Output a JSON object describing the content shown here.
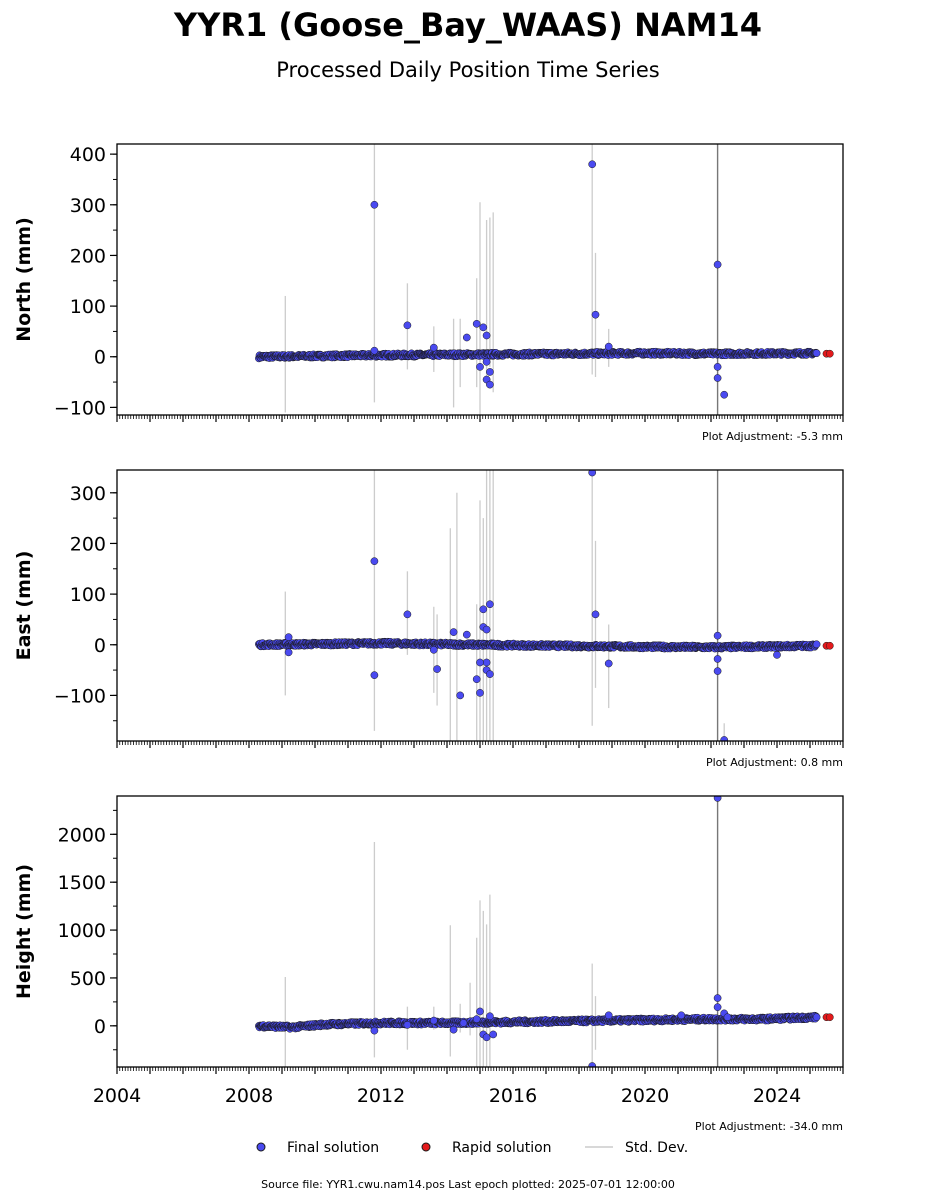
{
  "header": {
    "title": "YYR1 (Goose_Bay_WAAS) NAM14",
    "subtitle": "Processed Daily Position Time Series"
  },
  "footer": {
    "source": "Source file: YYR1.cwu.nam14.pos  Last epoch plotted: 2025-07-01 12:00:00"
  },
  "legend": {
    "items": [
      {
        "label": "Final solution",
        "color": "#4a4af0",
        "kind": "dot"
      },
      {
        "label": "Rapid solution",
        "color": "#e31a1c",
        "kind": "dot"
      },
      {
        "label": "Std. Dev.",
        "color": "#cccccc",
        "kind": "line"
      }
    ]
  },
  "colors": {
    "final": "#4a4af0",
    "rapid": "#e31a1c",
    "stddev": "#cccccc",
    "stddev_dark": "#777777",
    "edge": "#1a1a1a"
  },
  "chart_data": [
    {
      "type": "scatter",
      "ylabel": "North (mm)",
      "adjustment": "Plot Adjustment: -5.3 mm",
      "xlim": [
        2004,
        2026
      ],
      "ylim": [
        -115,
        420
      ],
      "yticks": [
        -100,
        0,
        100,
        200,
        300,
        400
      ],
      "ytick_labels": [
        "−100",
        "0",
        "100",
        "200",
        "300",
        "400"
      ],
      "baseline": [
        [
          2008.3,
          0
        ],
        [
          2012,
          3
        ],
        [
          2016,
          5
        ],
        [
          2020,
          7
        ],
        [
          2022.1,
          6
        ],
        [
          2025.2,
          7
        ]
      ],
      "outliers": [
        [
          2011.8,
          300
        ],
        [
          2011.8,
          12
        ],
        [
          2012.8,
          62
        ],
        [
          2013.6,
          18
        ],
        [
          2014.6,
          38
        ],
        [
          2014.9,
          65
        ],
        [
          2015.1,
          58
        ],
        [
          2015.2,
          42
        ],
        [
          2015.0,
          -20
        ],
        [
          2015.2,
          -45
        ],
        [
          2015.3,
          -55
        ],
        [
          2015.3,
          -30
        ],
        [
          2015.2,
          -10
        ],
        [
          2018.4,
          380
        ],
        [
          2018.5,
          83
        ],
        [
          2018.9,
          20
        ],
        [
          2022.2,
          182
        ],
        [
          2022.2,
          -20
        ],
        [
          2022.2,
          -42
        ],
        [
          2022.4,
          -75
        ]
      ],
      "errorbars": [
        [
          2009.1,
          -110,
          120
        ],
        [
          2011.8,
          -90,
          420
        ],
        [
          2012.8,
          -25,
          145
        ],
        [
          2013.6,
          -30,
          60
        ],
        [
          2014.2,
          -100,
          75
        ],
        [
          2014.4,
          -60,
          75
        ],
        [
          2014.9,
          -60,
          155
        ],
        [
          2015.0,
          -115,
          305
        ],
        [
          2015.2,
          -40,
          270
        ],
        [
          2015.3,
          -20,
          275
        ],
        [
          2015.4,
          -70,
          285
        ],
        [
          2018.4,
          -35,
          420
        ],
        [
          2018.5,
          -40,
          205
        ],
        [
          2018.9,
          -20,
          55
        ],
        [
          2022.2,
          -115,
          420
        ]
      ],
      "rapid": [
        [
          2025.5,
          6
        ],
        [
          2025.6,
          6
        ]
      ]
    },
    {
      "type": "scatter",
      "ylabel": "East (mm)",
      "adjustment": "Plot Adjustment: 0.8 mm",
      "xlim": [
        2004,
        2026
      ],
      "ylim": [
        -190,
        345
      ],
      "yticks": [
        -100,
        0,
        100,
        200,
        300
      ],
      "ytick_labels": [
        "−100",
        "0",
        "100",
        "200",
        "300"
      ],
      "baseline": [
        [
          2008.3,
          0
        ],
        [
          2012,
          3
        ],
        [
          2016,
          -1
        ],
        [
          2020,
          -4
        ],
        [
          2022.1,
          -5
        ],
        [
          2025.2,
          -2
        ]
      ],
      "outliers": [
        [
          2009.2,
          15
        ],
        [
          2009.2,
          -15
        ],
        [
          2011.8,
          165
        ],
        [
          2011.8,
          -60
        ],
        [
          2012.8,
          60
        ],
        [
          2013.6,
          -10
        ],
        [
          2013.7,
          -48
        ],
        [
          2014.2,
          25
        ],
        [
          2014.4,
          -100
        ],
        [
          2014.6,
          20
        ],
        [
          2014.9,
          -68
        ],
        [
          2015.0,
          -95
        ],
        [
          2015.1,
          70
        ],
        [
          2015.1,
          35
        ],
        [
          2015.2,
          30
        ],
        [
          2015.3,
          80
        ],
        [
          2015.2,
          -50
        ],
        [
          2015.3,
          -58
        ],
        [
          2015.2,
          -35
        ],
        [
          2015.0,
          -35
        ],
        [
          2018.4,
          340
        ],
        [
          2018.5,
          60
        ],
        [
          2018.9,
          -37
        ],
        [
          2022.2,
          18
        ],
        [
          2022.2,
          -28
        ],
        [
          2022.2,
          -52
        ],
        [
          2022.4,
          -188
        ],
        [
          2024.0,
          -20
        ]
      ],
      "errorbars": [
        [
          2009.1,
          -100,
          105
        ],
        [
          2011.8,
          -170,
          345
        ],
        [
          2012.8,
          -20,
          145
        ],
        [
          2013.6,
          -95,
          75
        ],
        [
          2013.7,
          -120,
          60
        ],
        [
          2014.1,
          -190,
          230
        ],
        [
          2014.3,
          -190,
          300
        ],
        [
          2014.9,
          -190,
          80
        ],
        [
          2015.0,
          -190,
          285
        ],
        [
          2015.1,
          -190,
          250
        ],
        [
          2015.2,
          -190,
          345
        ],
        [
          2015.3,
          -190,
          345
        ],
        [
          2015.4,
          -190,
          345
        ],
        [
          2018.4,
          -160,
          345
        ],
        [
          2018.5,
          -85,
          205
        ],
        [
          2018.9,
          -125,
          40
        ],
        [
          2022.2,
          -190,
          345
        ],
        [
          2022.4,
          -190,
          -155
        ]
      ],
      "rapid": [
        [
          2025.5,
          -2
        ],
        [
          2025.6,
          -2
        ]
      ]
    },
    {
      "type": "scatter",
      "ylabel": "Height (mm)",
      "adjustment": "Plot Adjustment: -34.0 mm",
      "xlim": [
        2004,
        2026
      ],
      "ylim": [
        -430,
        2400
      ],
      "yticks": [
        0,
        500,
        1000,
        1500,
        2000
      ],
      "ytick_labels": [
        "0",
        "500",
        "1000",
        "1500",
        "2000"
      ],
      "xticks": [
        2004,
        2008,
        2012,
        2016,
        2020,
        2024
      ],
      "baseline": [
        [
          2008.3,
          0
        ],
        [
          2009.3,
          -15
        ],
        [
          2010.3,
          15
        ],
        [
          2012,
          30
        ],
        [
          2014,
          30
        ],
        [
          2016,
          40
        ],
        [
          2018,
          50
        ],
        [
          2020,
          60
        ],
        [
          2022,
          70
        ],
        [
          2022.5,
          70
        ],
        [
          2023.5,
          70
        ],
        [
          2025.2,
          90
        ]
      ],
      "outliers": [
        [
          2011.8,
          -50
        ],
        [
          2012.8,
          10
        ],
        [
          2013.6,
          55
        ],
        [
          2014.2,
          -40
        ],
        [
          2014.5,
          30
        ],
        [
          2014.9,
          70
        ],
        [
          2015.0,
          150
        ],
        [
          2015.1,
          -90
        ],
        [
          2015.2,
          -120
        ],
        [
          2015.3,
          100
        ],
        [
          2015.4,
          -90
        ],
        [
          2018.4,
          -420
        ],
        [
          2018.9,
          110
        ],
        [
          2021.1,
          110
        ],
        [
          2022.2,
          2380
        ],
        [
          2022.2,
          290
        ],
        [
          2022.2,
          195
        ],
        [
          2022.4,
          130
        ],
        [
          2022.5,
          90
        ]
      ],
      "errorbars": [
        [
          2009.1,
          -430,
          510
        ],
        [
          2011.8,
          -330,
          1920
        ],
        [
          2012.8,
          -250,
          200
        ],
        [
          2013.6,
          -40,
          200
        ],
        [
          2014.1,
          -320,
          1050
        ],
        [
          2014.4,
          -70,
          230
        ],
        [
          2014.7,
          -100,
          450
        ],
        [
          2014.9,
          -430,
          920
        ],
        [
          2015.0,
          -430,
          1310
        ],
        [
          2015.1,
          -430,
          1200
        ],
        [
          2015.2,
          -430,
          1060
        ],
        [
          2015.3,
          -430,
          1370
        ],
        [
          2018.4,
          -430,
          650
        ],
        [
          2018.5,
          -250,
          310
        ],
        [
          2022.2,
          -430,
          2400
        ]
      ],
      "rapid": [
        [
          2025.5,
          90
        ],
        [
          2025.6,
          90
        ]
      ]
    }
  ]
}
